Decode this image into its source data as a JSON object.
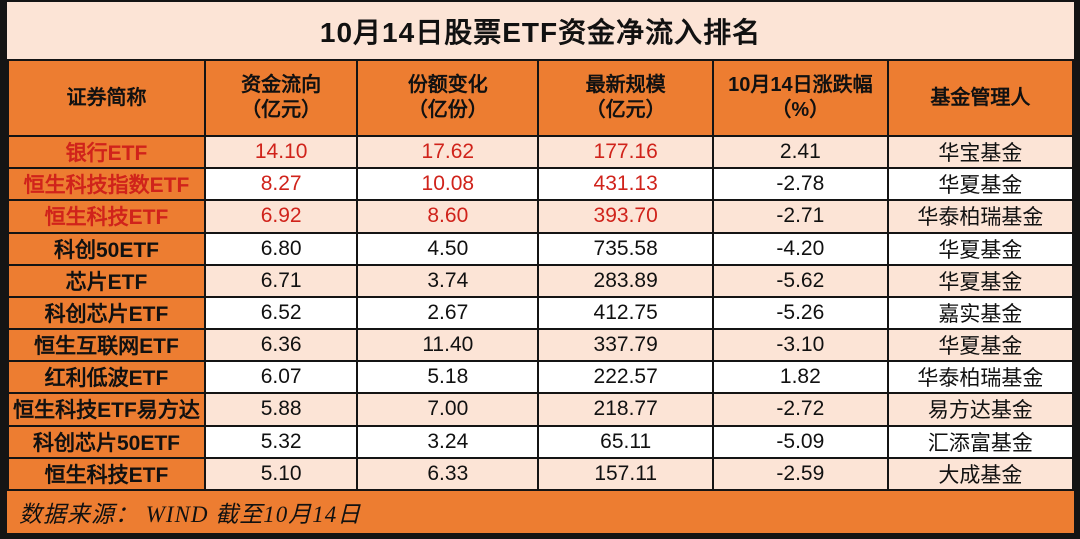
{
  "title": "10月14日股票ETF资金净流入排名",
  "colors": {
    "header_orange": "#ED7D31",
    "row_pink": "#FCE4D6",
    "row_white": "#FFFFFF",
    "highlight_red": "#D0231B",
    "title_bg": "#FCE4D6",
    "border_black": "#141414"
  },
  "footer": {
    "source_note": "数据来源： WIND  截至10月14日"
  },
  "chart_data": {
    "type": "table",
    "title": "10月14日股票ETF资金净流入排名",
    "columns": [
      {
        "label": "证券简称",
        "sub": ""
      },
      {
        "label": "资金流向",
        "sub": "（亿元）"
      },
      {
        "label": "份额变化",
        "sub": "（亿份）"
      },
      {
        "label": "最新规模",
        "sub": "（亿元）"
      },
      {
        "label": "10月14日涨跌幅",
        "sub": "（%）"
      },
      {
        "label": "基金管理人",
        "sub": ""
      }
    ],
    "rows": [
      {
        "name": "银行ETF",
        "flow": "14.10",
        "share_change": "17.62",
        "scale": "177.16",
        "change_pct": "2.41",
        "manager": "华宝基金",
        "highlight": true
      },
      {
        "name": "恒生科技指数ETF",
        "flow": "8.27",
        "share_change": "10.08",
        "scale": "431.13",
        "change_pct": "-2.78",
        "manager": "华夏基金",
        "highlight": true
      },
      {
        "name": "恒生科技ETF",
        "flow": "6.92",
        "share_change": "8.60",
        "scale": "393.70",
        "change_pct": "-2.71",
        "manager": "华泰柏瑞基金",
        "highlight": true
      },
      {
        "name": "科创50ETF",
        "flow": "6.80",
        "share_change": "4.50",
        "scale": "735.58",
        "change_pct": "-4.20",
        "manager": "华夏基金",
        "highlight": false
      },
      {
        "name": "芯片ETF",
        "flow": "6.71",
        "share_change": "3.74",
        "scale": "283.89",
        "change_pct": "-5.62",
        "manager": "华夏基金",
        "highlight": false
      },
      {
        "name": "科创芯片ETF",
        "flow": "6.52",
        "share_change": "2.67",
        "scale": "412.75",
        "change_pct": "-5.26",
        "manager": "嘉实基金",
        "highlight": false
      },
      {
        "name": "恒生互联网ETF",
        "flow": "6.36",
        "share_change": "11.40",
        "scale": "337.79",
        "change_pct": "-3.10",
        "manager": "华夏基金",
        "highlight": false
      },
      {
        "name": "红利低波ETF",
        "flow": "6.07",
        "share_change": "5.18",
        "scale": "222.57",
        "change_pct": "1.82",
        "manager": "华泰柏瑞基金",
        "highlight": false
      },
      {
        "name": "恒生科技ETF易方达",
        "flow": "5.88",
        "share_change": "7.00",
        "scale": "218.77",
        "change_pct": "-2.72",
        "manager": "易方达基金",
        "highlight": false
      },
      {
        "name": "科创芯片50ETF",
        "flow": "5.32",
        "share_change": "3.24",
        "scale": "65.11",
        "change_pct": "-5.09",
        "manager": "汇添富基金",
        "highlight": false
      },
      {
        "name": "恒生科技ETF",
        "flow": "5.10",
        "share_change": "6.33",
        "scale": "157.11",
        "change_pct": "-2.59",
        "manager": "大成基金",
        "highlight": false
      }
    ]
  }
}
